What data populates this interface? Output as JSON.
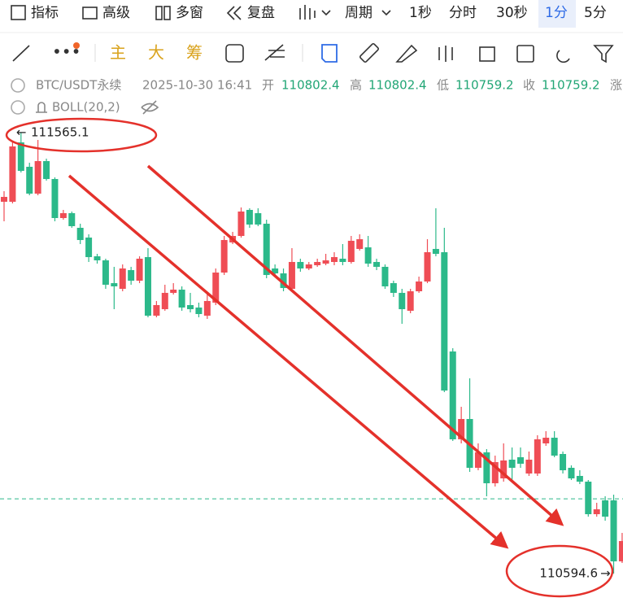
{
  "toolbar": {
    "items": [
      "指标",
      "高级",
      "多窗",
      "复盘",
      "周期",
      "1秒",
      "分时",
      "30秒",
      "1分",
      "5分"
    ]
  },
  "drawing_tools": {
    "items": [
      "主",
      "大",
      "筹"
    ]
  },
  "info": {
    "symbol": "BTC/USDT永续",
    "time": "2025-10-30 16:41",
    "open_label": "开",
    "open": 110802.4,
    "high_label": "高",
    "high": 110802.4,
    "low_label": "低",
    "low": 110759.2,
    "close_label": "收",
    "close": 110759.2,
    "change_label": "涨"
  },
  "indicator": {
    "name": "BOLL(20,2)"
  },
  "chart_data": {
    "type": "candlestick",
    "up_color": "#ef4d55",
    "down_color": "#2cb98a",
    "open": [
      111412.9,
      111412.9,
      111543.6,
      111489.9,
      111430.8,
      111502.4,
      111463.0,
      111377.1,
      111387.8,
      111355.6,
      111334.1,
      111292.9,
      111284.0,
      111233.8,
      111221.3,
      111262.5,
      111239.2,
      111291.1,
      111162.2,
      111176.5,
      111212.4,
      111219.5,
      111185.5,
      111180.1,
      111162.2,
      111190.9,
      111257.1,
      111323.4,
      111337.7,
      111395.0,
      111387.8,
      111364.6,
      111266.1,
      111255.3,
      111221.3,
      111280.4,
      111266.1,
      111273.2,
      111276.8,
      111280.4,
      111287.6,
      111280.4,
      111309.1,
      111312.6,
      111280.4,
      111269.7,
      111233.8,
      111212.4,
      111173.0,
      111215.9,
      111237.4,
      111309.1,
      111301.9,
      111083.4,
      110890.1,
      110934.8,
      110827.4,
      110861.4,
      110793.4,
      110804.1,
      110845.3,
      110850.7,
      110814.8,
      110814.8,
      110881.1,
      110893.6,
      110857.8,
      110827.4,
      110809.5,
      110796.9,
      110725.3,
      110755.8,
      110755.8,
      110621.5
    ],
    "close": [
      111423.6,
      111534.7,
      111480.9,
      111430.8,
      111502.4,
      111463.0,
      111377.1,
      111387.8,
      111359.2,
      111328.7,
      111291.1,
      111284.0,
      111230.3,
      111226.7,
      111266.1,
      111239.2,
      111287.6,
      111162.2,
      111185.5,
      111212.4,
      111219.5,
      111180.1,
      111176.5,
      111165.8,
      111194.5,
      111257.1,
      111328.7,
      111337.7,
      111391.4,
      111362.8,
      111362.8,
      111251.8,
      111255.3,
      111223.1,
      111280.4,
      111266.1,
      111275.0,
      111280.4,
      111284.0,
      111291.1,
      111280.4,
      111327.0,
      111330.5,
      111276.8,
      111269.7,
      111226.7,
      111212.4,
      111176.5,
      111215.9,
      111237.4,
      111301.9,
      111298.3,
      110997.5,
      110890.1,
      110934.8,
      110827.4,
      110861.4,
      110793.4,
      110839.9,
      110843.5,
      110827.4,
      110836.3,
      110845.3,
      110890.1,
      110893.6,
      110854.2,
      110822.0,
      110804.1,
      110796.9,
      110725.3,
      110736.1,
      110719.9,
      110621.5,
      110666.2
    ],
    "high": [
      111436.2,
      111543.6,
      111565.1,
      111498.8,
      111549.0,
      111507.8,
      111466.6,
      111395.0,
      111391.4,
      111364.6,
      111341.3,
      111298.3,
      111287.6,
      111269.7,
      111275.0,
      111269.7,
      111292.9,
      111310.8,
      111194.5,
      111230.3,
      111233.8,
      111226.7,
      111212.4,
      111190.9,
      111212.4,
      111266.1,
      111337.7,
      111346.6,
      111400.4,
      111398.6,
      111398.6,
      111373.5,
      111275.0,
      111266.1,
      111310.8,
      111287.6,
      111280.4,
      111287.6,
      111298.3,
      111301.9,
      111319.8,
      111337.7,
      111341.3,
      111337.7,
      111287.6,
      111275.0,
      111239.2,
      111221.3,
      111221.3,
      111248.2,
      111330.5,
      111398.6,
      111355.6,
      111090.6,
      110961.7,
      111024.3,
      110881.1,
      110868.6,
      110854.2,
      110881.1,
      110872.1,
      110872.1,
      110863.2,
      110899.0,
      110908.0,
      110908.0,
      110863.2,
      110832.8,
      110822.0,
      110800.5,
      110750.4,
      110764.7,
      110768.3,
      110684.1
    ],
    "low": [
      111369.9,
      111409.3,
      111477.4,
      111427.2,
      111427.2,
      111459.5,
      111369.9,
      111373.5,
      111355.6,
      111319.8,
      111280.4,
      111276.8,
      111221.3,
      111176.5,
      111215.9,
      111230.3,
      111233.8,
      111158.6,
      111158.6,
      111173.0,
      111208.8,
      111173.0,
      111169.4,
      111158.6,
      111155.1,
      111185.5,
      111251.8,
      111319.8,
      111334.1,
      111355.6,
      111359.2,
      111244.6,
      111248.2,
      111215.9,
      111215.9,
      111258.9,
      111262.5,
      111269.7,
      111273.2,
      111273.2,
      111273.2,
      111276.8,
      111305.5,
      111269.7,
      111262.5,
      111221.3,
      111203.4,
      111144.3,
      111167.6,
      111212.4,
      111233.8,
      111292.9,
      110993.9,
      110886.5,
      110881.1,
      110818.4,
      110822.0,
      110764.7,
      110786.2,
      110796.9,
      110800.5,
      110827.4,
      110809.5,
      110809.5,
      110875.7,
      110850.7,
      110814.8,
      110800.5,
      110791.6,
      110719.9,
      110719.9,
      110711.0,
      110594.6,
      110617.9
    ]
  }
}
